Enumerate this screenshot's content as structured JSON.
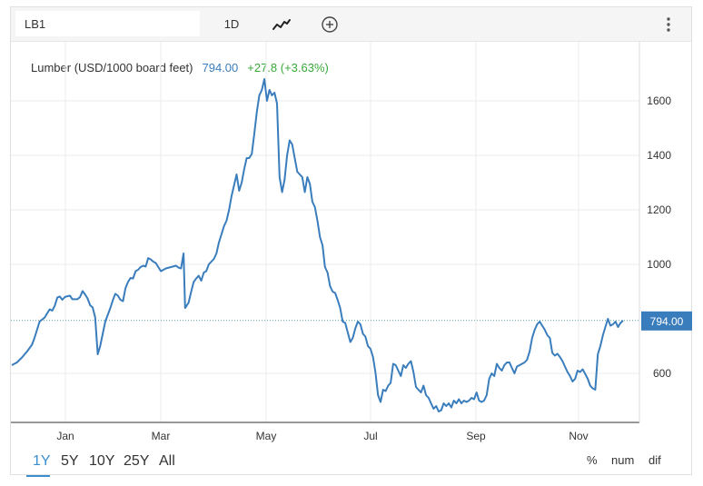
{
  "toolbar": {
    "symbol": "LB1",
    "period": "1D",
    "chart_type_icon": "line-chart-icon",
    "add_icon": "plus-circle-icon",
    "menu_icon": "vertical-dots-icon"
  },
  "legend": {
    "name": "Lumber (USD/1000 board feet)",
    "price": "794.00",
    "change": "+27.8 (+3.63%)"
  },
  "price_label": "794.00",
  "ranges": [
    "1Y",
    "5Y",
    "10Y",
    "25Y",
    "All"
  ],
  "active_range": "1Y",
  "modes": [
    "%",
    "num",
    "dif"
  ],
  "colors": {
    "line": "#3a7dbd",
    "price_label_bg": "#3a7dbd",
    "positive": "#3aa83a",
    "grid": "#ebebeb",
    "accent": "#3a8fd0"
  },
  "chart_data": {
    "type": "line",
    "title": "Lumber (USD/1000 board feet)",
    "y_ticks": [
      600,
      1000,
      1200,
      1400,
      1600
    ],
    "ylim": [
      420,
      1700
    ],
    "x_ticks": [
      "Jan",
      "Mar",
      "May",
      "Jul",
      "Sep",
      "Nov"
    ],
    "last_value": 794.0,
    "series": [
      {
        "name": "Lumber (USD/1000 board feet)",
        "points": [
          [
            0,
            630
          ],
          [
            2,
            640
          ],
          [
            4,
            658
          ],
          [
            6,
            680
          ],
          [
            8,
            705
          ],
          [
            9,
            730
          ],
          [
            10,
            760
          ],
          [
            11,
            790
          ],
          [
            13,
            805
          ],
          [
            14,
            820
          ],
          [
            15,
            835
          ],
          [
            16,
            830
          ],
          [
            17,
            848
          ],
          [
            18,
            878
          ],
          [
            19,
            882
          ],
          [
            20,
            870
          ],
          [
            21,
            880
          ],
          [
            22,
            883
          ],
          [
            23,
            885
          ],
          [
            24,
            872
          ],
          [
            26,
            872
          ],
          [
            27,
            880
          ],
          [
            28,
            902
          ],
          [
            29,
            890
          ],
          [
            30,
            875
          ],
          [
            31,
            850
          ],
          [
            32,
            842
          ],
          [
            33,
            805
          ],
          [
            34,
            670
          ],
          [
            35,
            700
          ],
          [
            36,
            745
          ],
          [
            37,
            790
          ],
          [
            38,
            815
          ],
          [
            39,
            840
          ],
          [
            40,
            868
          ],
          [
            41,
            892
          ],
          [
            42,
            885
          ],
          [
            43,
            870
          ],
          [
            44,
            865
          ],
          [
            45,
            912
          ],
          [
            46,
            935
          ],
          [
            47,
            950
          ],
          [
            48,
            948
          ],
          [
            49,
            975
          ],
          [
            50,
            980
          ],
          [
            51,
            990
          ],
          [
            52,
            995
          ],
          [
            53,
            992
          ],
          [
            54,
            1023
          ],
          [
            55,
            1018
          ],
          [
            56,
            1010
          ],
          [
            57,
            1005
          ],
          [
            58,
            990
          ],
          [
            59,
            975
          ],
          [
            60,
            980
          ],
          [
            61,
            985
          ],
          [
            63,
            990
          ],
          [
            65,
            995
          ],
          [
            66,
            988
          ],
          [
            67,
            985
          ],
          [
            68,
            1040
          ],
          [
            68.6,
            840
          ],
          [
            69,
            845
          ],
          [
            70,
            860
          ],
          [
            71,
            900
          ],
          [
            72,
            935
          ],
          [
            73,
            948
          ],
          [
            74,
            958
          ],
          [
            75,
            940
          ],
          [
            76,
            970
          ],
          [
            77,
            975
          ],
          [
            78,
            1000
          ],
          [
            79,
            1010
          ],
          [
            80,
            1020
          ],
          [
            81,
            1040
          ],
          [
            82,
            1080
          ],
          [
            83,
            1110
          ],
          [
            84,
            1140
          ],
          [
            85,
            1160
          ],
          [
            86,
            1200
          ],
          [
            87,
            1250
          ],
          [
            88,
            1290
          ],
          [
            89,
            1330
          ],
          [
            90,
            1270
          ],
          [
            91,
            1300
          ],
          [
            92,
            1350
          ],
          [
            93,
            1390
          ],
          [
            94,
            1390
          ],
          [
            95,
            1405
          ],
          [
            96,
            1480
          ],
          [
            97,
            1560
          ],
          [
            98,
            1620
          ],
          [
            99,
            1640
          ],
          [
            100,
            1680
          ],
          [
            101,
            1600
          ],
          [
            102,
            1640
          ],
          [
            103,
            1620
          ],
          [
            104,
            1630
          ],
          [
            105,
            1590
          ],
          [
            106,
            1320
          ],
          [
            107,
            1265
          ],
          [
            108,
            1310
          ],
          [
            109,
            1400
          ],
          [
            110,
            1455
          ],
          [
            111,
            1440
          ],
          [
            112,
            1390
          ],
          [
            113,
            1340
          ],
          [
            114,
            1330
          ],
          [
            115,
            1320
          ],
          [
            116,
            1265
          ],
          [
            117,
            1320
          ],
          [
            118,
            1295
          ],
          [
            119,
            1230
          ],
          [
            120,
            1210
          ],
          [
            121,
            1160
          ],
          [
            122,
            1100
          ],
          [
            123,
            1070
          ],
          [
            124,
            990
          ],
          [
            125,
            970
          ],
          [
            126,
            920
          ],
          [
            127,
            900
          ],
          [
            128,
            895
          ],
          [
            129,
            870
          ],
          [
            130,
            840
          ],
          [
            131,
            790
          ],
          [
            132,
            785
          ],
          [
            133,
            750
          ],
          [
            134,
            715
          ],
          [
            135,
            730
          ],
          [
            136,
            765
          ],
          [
            137,
            790
          ],
          [
            138,
            780
          ],
          [
            139,
            745
          ],
          [
            140,
            735
          ],
          [
            141,
            700
          ],
          [
            142,
            690
          ],
          [
            143,
            660
          ],
          [
            144,
            600
          ],
          [
            145,
            520
          ],
          [
            146,
            495
          ],
          [
            147,
            540
          ],
          [
            148,
            535
          ],
          [
            149,
            555
          ],
          [
            150,
            565
          ],
          [
            151,
            635
          ],
          [
            152,
            630
          ],
          [
            153,
            610
          ],
          [
            154,
            590
          ],
          [
            155,
            630
          ],
          [
            156,
            620
          ],
          [
            157,
            635
          ],
          [
            158,
            645
          ],
          [
            159,
            605
          ],
          [
            160,
            550
          ],
          [
            161,
            540
          ],
          [
            162,
            530
          ],
          [
            163,
            555
          ],
          [
            164,
            520
          ],
          [
            165,
            510
          ],
          [
            166,
            490
          ],
          [
            167,
            470
          ],
          [
            168,
            480
          ],
          [
            169,
            460
          ],
          [
            170,
            465
          ],
          [
            171,
            490
          ],
          [
            172,
            480
          ],
          [
            173,
            490
          ],
          [
            174,
            475
          ],
          [
            175,
            500
          ],
          [
            176,
            490
          ],
          [
            177,
            505
          ],
          [
            178,
            490
          ],
          [
            179,
            500
          ],
          [
            180,
            495
          ],
          [
            181,
            500
          ],
          [
            182,
            510
          ],
          [
            183,
            505
          ],
          [
            184,
            530
          ],
          [
            185,
            500
          ],
          [
            186,
            495
          ],
          [
            187,
            500
          ],
          [
            188,
            520
          ],
          [
            189,
            580
          ],
          [
            190,
            600
          ],
          [
            191,
            590
          ],
          [
            192,
            635
          ],
          [
            193,
            620
          ],
          [
            194,
            610
          ],
          [
            195,
            630
          ],
          [
            196,
            640
          ],
          [
            197,
            640
          ],
          [
            198,
            620
          ],
          [
            199,
            600
          ],
          [
            200,
            625
          ],
          [
            201,
            630
          ],
          [
            202,
            635
          ],
          [
            203,
            640
          ],
          [
            204,
            650
          ],
          [
            205,
            680
          ],
          [
            206,
            730
          ],
          [
            207,
            760
          ],
          [
            208,
            780
          ],
          [
            209,
            790
          ],
          [
            210,
            775
          ],
          [
            211,
            760
          ],
          [
            212,
            740
          ],
          [
            213,
            730
          ],
          [
            214,
            675
          ],
          [
            215,
            665
          ],
          [
            216,
            672
          ],
          [
            217,
            660
          ],
          [
            218,
            645
          ],
          [
            219,
            625
          ],
          [
            220,
            605
          ],
          [
            221,
            590
          ],
          [
            222,
            570
          ],
          [
            223,
            580
          ],
          [
            224,
            610
          ],
          [
            225,
            605
          ],
          [
            226,
            615
          ],
          [
            227,
            598
          ],
          [
            228,
            580
          ],
          [
            229,
            555
          ],
          [
            230,
            545
          ],
          [
            231,
            540
          ],
          [
            232,
            670
          ],
          [
            233,
            700
          ],
          [
            234,
            740
          ],
          [
            235,
            770
          ],
          [
            236,
            800
          ],
          [
            237,
            775
          ],
          [
            238,
            780
          ],
          [
            239,
            790
          ],
          [
            240,
            770
          ],
          [
            241,
            785
          ],
          [
            242,
            794
          ]
        ]
      }
    ]
  }
}
